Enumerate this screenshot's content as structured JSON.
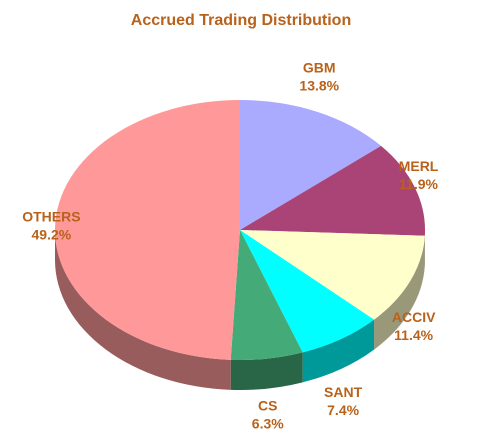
{
  "chart_data": {
    "type": "pie",
    "title": "Accrued Trading Distribution",
    "categories": [
      "GBM",
      "MERL",
      "ACCIV",
      "SANT",
      "CS",
      "OTHERS"
    ],
    "values": [
      13.8,
      11.9,
      11.4,
      7.4,
      6.3,
      49.2
    ],
    "value_labels": [
      "13.8%",
      "11.9%",
      "11.4%",
      "7.4%",
      "6.3%",
      "49.2%"
    ],
    "colors": [
      "#aaaaff",
      "#aa4477",
      "#ffffcc",
      "#00ffff",
      "#44aa77",
      "#ff9999"
    ]
  }
}
